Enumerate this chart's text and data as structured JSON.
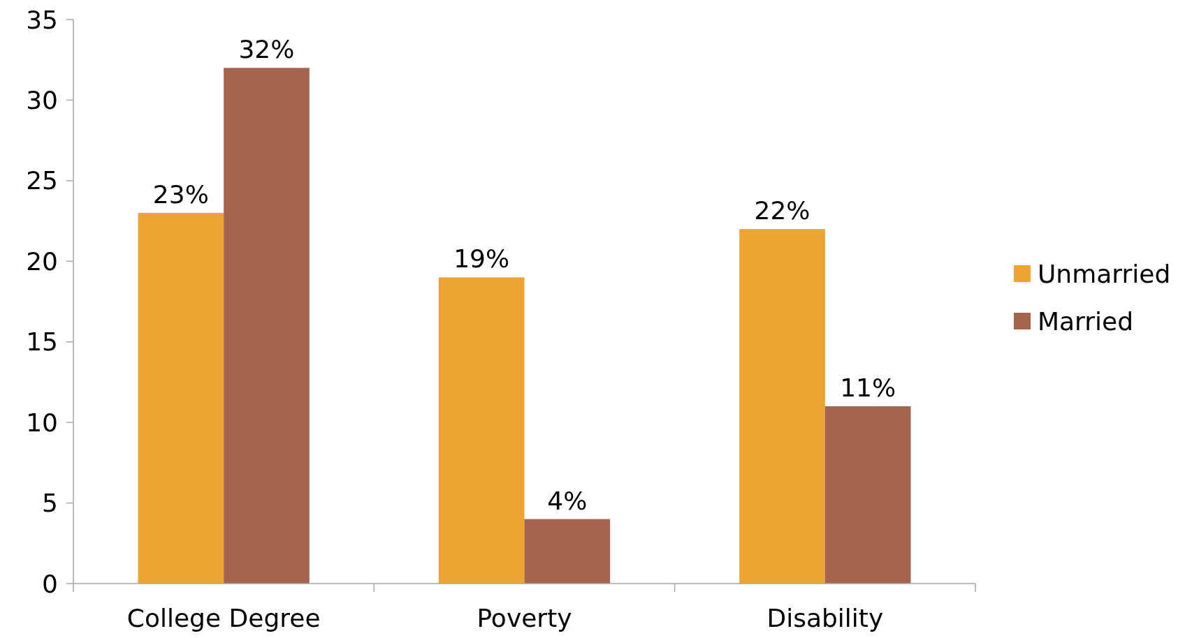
{
  "chart_data": {
    "type": "bar",
    "categories": [
      "College Degree",
      "Poverty",
      "Disability"
    ],
    "series": [
      {
        "name": "Unmarried",
        "color": "#eda431",
        "values": [
          23,
          19,
          22
        ],
        "value_labels": [
          "23%",
          "19%",
          "22%"
        ]
      },
      {
        "name": "Married",
        "color": "#a5644e",
        "values": [
          32,
          4,
          11
        ],
        "value_labels": [
          "32%",
          "4%",
          "11%"
        ]
      }
    ],
    "ylim": [
      0,
      35
    ],
    "yticks": [
      0,
      5,
      10,
      15,
      20,
      25,
      30,
      35
    ],
    "grid": false,
    "legend": "right"
  }
}
